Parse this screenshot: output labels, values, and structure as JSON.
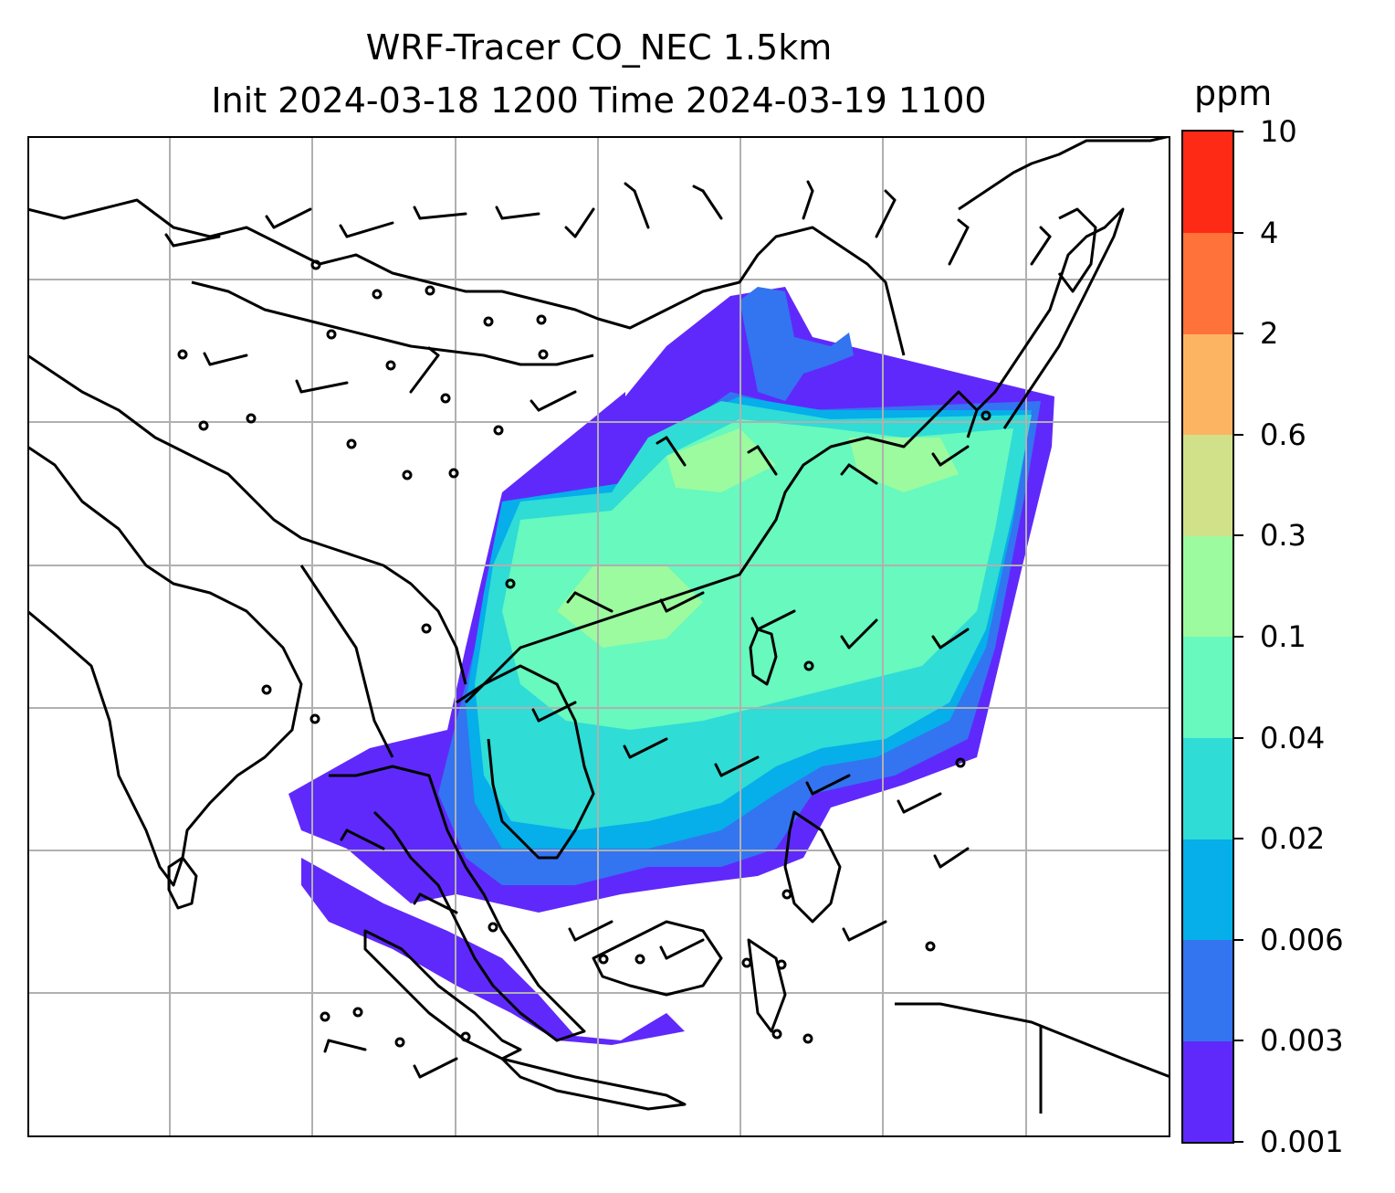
{
  "title": {
    "line1": "WRF-Tracer CO_NEC 1.5km",
    "line2": "Init 2024-03-18 1200 Time 2024-03-19 1100"
  },
  "colorbar": {
    "unit": "ppm",
    "levels": [
      "0.001",
      "0.003",
      "0.006",
      "0.02",
      "0.04",
      "0.1",
      "0.3",
      "0.6",
      "2",
      "4",
      "10"
    ],
    "colors": [
      "#6029fb",
      "#3374f1",
      "#06aeea",
      "#2fdcd6",
      "#67f9bd",
      "#9cfa9f",
      "#d0e18a",
      "#fdb462",
      "#ff7239",
      "#ff2a16"
    ]
  },
  "map": {
    "gridlines": true,
    "coastline_color": "#000000",
    "grid_color": "#b0b0b0",
    "wind_barbs": true
  }
}
